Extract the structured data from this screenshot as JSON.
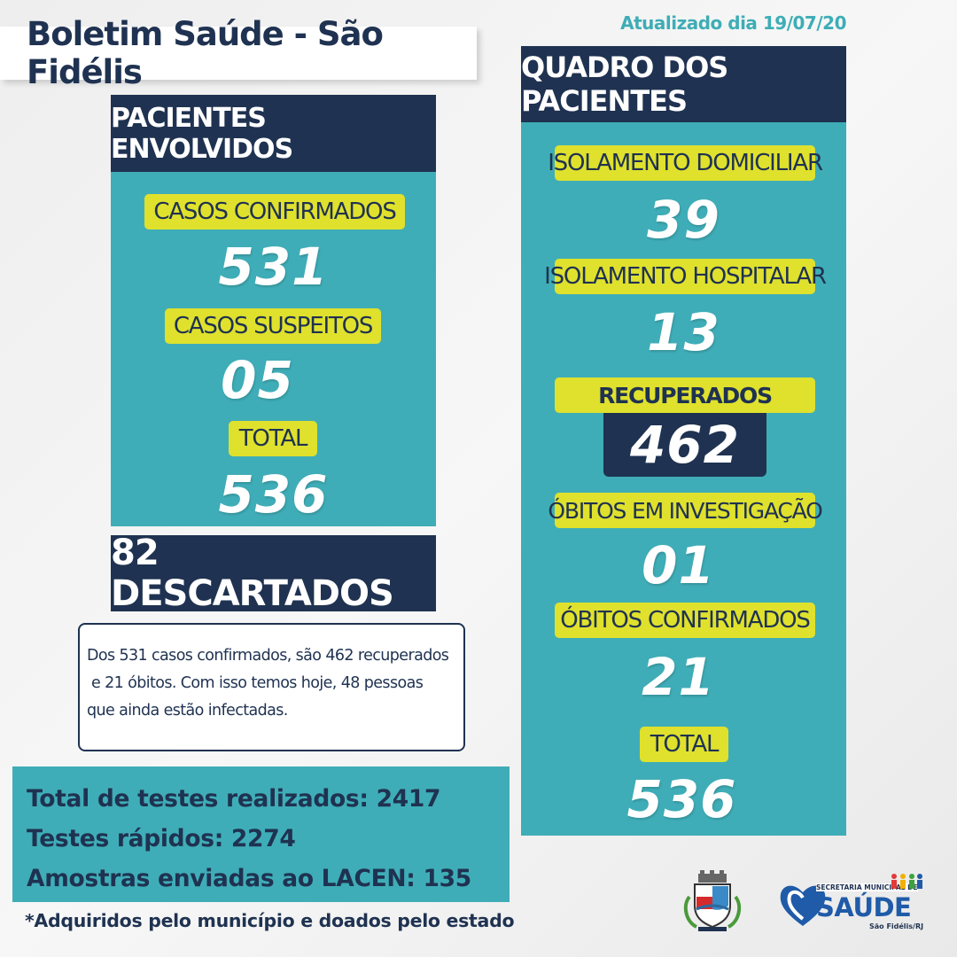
{
  "title": "Boletim Saúde - São Fidélis",
  "updated": "Atualizado dia 19/07/20",
  "left_panel": {
    "header": "PACIENTES ENVOLVIDOS",
    "items": [
      {
        "label": "CASOS CONFIRMADOS",
        "value": "531"
      },
      {
        "label": "CASOS SUSPEITOS",
        "value": "05"
      },
      {
        "label": "TOTAL",
        "value": "536"
      }
    ]
  },
  "discarded": "82 DESCARTADOS",
  "note": {
    "lines": [
      "Dos 531 casos confirmados, são 462 recuperados",
      " e 21 óbitos. Com isso temos hoje, 48 pessoas",
      "que ainda estão infectadas."
    ]
  },
  "tests": {
    "lines": [
      "Total de testes realizados: 2417",
      "Testes rápidos: 2274",
      "Amostras enviadas ao LACEN: 135"
    ]
  },
  "footnote": "*Adquiridos pelo município e doados pelo estado",
  "right_panel": {
    "header": "QUADRO DOS PACIENTES",
    "items": [
      {
        "label": "ISOLAMENTO DOMICILIAR",
        "value": "39"
      },
      {
        "label": "ISOLAMENTO HOSPITALAR",
        "value": "13"
      },
      {
        "label": "RECUPERADOS",
        "value": "462"
      },
      {
        "label": "ÓBITOS EM INVESTIGAÇÃO",
        "value": "01"
      },
      {
        "label": "ÓBITOS CONFIRMADOS",
        "value": "21"
      },
      {
        "label": "TOTAL",
        "value": "536"
      }
    ]
  },
  "logos": {
    "secretaria_line": "SECRETARIA MUNICIPAL DE",
    "saude": "SAÚDE",
    "city": "São Fidélis/RJ"
  },
  "colors": {
    "teal": "#3fadb7",
    "navy": "#1f3251",
    "yellow": "#dfe12d"
  }
}
